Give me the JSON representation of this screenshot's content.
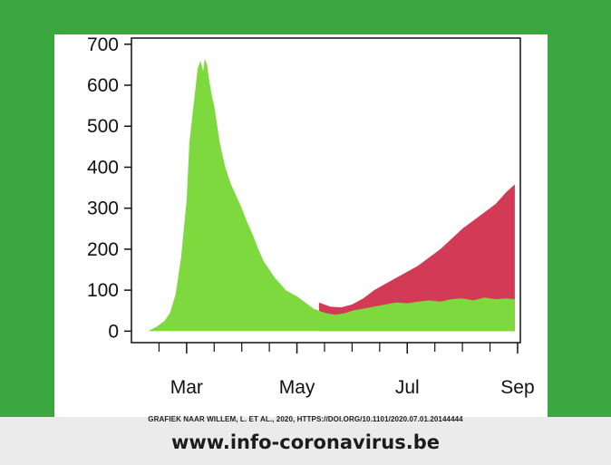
{
  "colors": {
    "background": "#3aa73f",
    "card": "#ffffff",
    "footer": "#ebebeb",
    "green_area": "#7ed93e",
    "red_area": "#d23a55",
    "axis": "#111111"
  },
  "citation": "GRAFIEK NAAR WILLEM, L. ET AL., 2020, HTTPS://DOI.ORG/10.1101/2020.07.01.20144444",
  "website": "www.info-coronavirus.be",
  "chart_data": {
    "type": "area",
    "title": "",
    "xlabel": "",
    "ylabel": "",
    "x_tick_labels": [
      "Mar",
      "May",
      "Jul",
      "Sep"
    ],
    "x_tick_positions": [
      2,
      4,
      6,
      8
    ],
    "minor_ticks": [
      1.5,
      2.5,
      3,
      3.5,
      4.5,
      5,
      5.5,
      6.5,
      7,
      7.5
    ],
    "y_ticks": [
      0,
      100,
      200,
      300,
      400,
      500,
      600,
      700
    ],
    "xlim": [
      1.0,
      8.05
    ],
    "ylim": [
      -28,
      715
    ],
    "grid": false,
    "legend": "none",
    "series": [
      {
        "color": "green",
        "x": [
          1.3,
          1.45,
          1.6,
          1.7,
          1.8,
          1.9,
          2.0,
          2.05,
          2.15,
          2.2,
          2.25,
          2.3,
          2.33,
          2.37,
          2.4,
          2.45,
          2.5,
          2.6,
          2.7,
          2.8,
          2.9,
          3.0,
          3.1,
          3.2,
          3.3,
          3.4,
          3.5,
          3.6,
          3.7,
          3.8,
          3.9,
          4.0,
          4.1,
          4.2,
          4.3,
          4.4,
          4.5,
          4.6,
          4.7,
          4.8,
          4.9,
          5.0,
          5.2,
          5.4,
          5.6,
          5.8,
          6.0,
          6.2,
          6.4,
          6.6,
          6.8,
          7.0,
          7.2,
          7.4,
          7.6,
          7.8,
          7.95
        ],
        "y": [
          0,
          10,
          25,
          45,
          90,
          180,
          320,
          460,
          580,
          640,
          660,
          635,
          665,
          650,
          620,
          580,
          550,
          460,
          400,
          360,
          330,
          300,
          265,
          235,
          200,
          170,
          150,
          130,
          115,
          100,
          92,
          85,
          75,
          65,
          55,
          50,
          45,
          42,
          40,
          42,
          45,
          50,
          55,
          60,
          65,
          70,
          68,
          72,
          75,
          72,
          78,
          80,
          75,
          82,
          78,
          80,
          78
        ]
      },
      {
        "color": "red",
        "x": [
          4.4,
          4.6,
          4.8,
          5.0,
          5.2,
          5.4,
          5.6,
          5.8,
          6.0,
          6.2,
          6.4,
          6.6,
          6.8,
          7.0,
          7.2,
          7.4,
          7.6,
          7.8,
          7.95
        ],
        "y": [
          70,
          60,
          58,
          65,
          80,
          100,
          115,
          130,
          145,
          160,
          180,
          200,
          225,
          250,
          270,
          290,
          310,
          340,
          358
        ]
      }
    ]
  }
}
